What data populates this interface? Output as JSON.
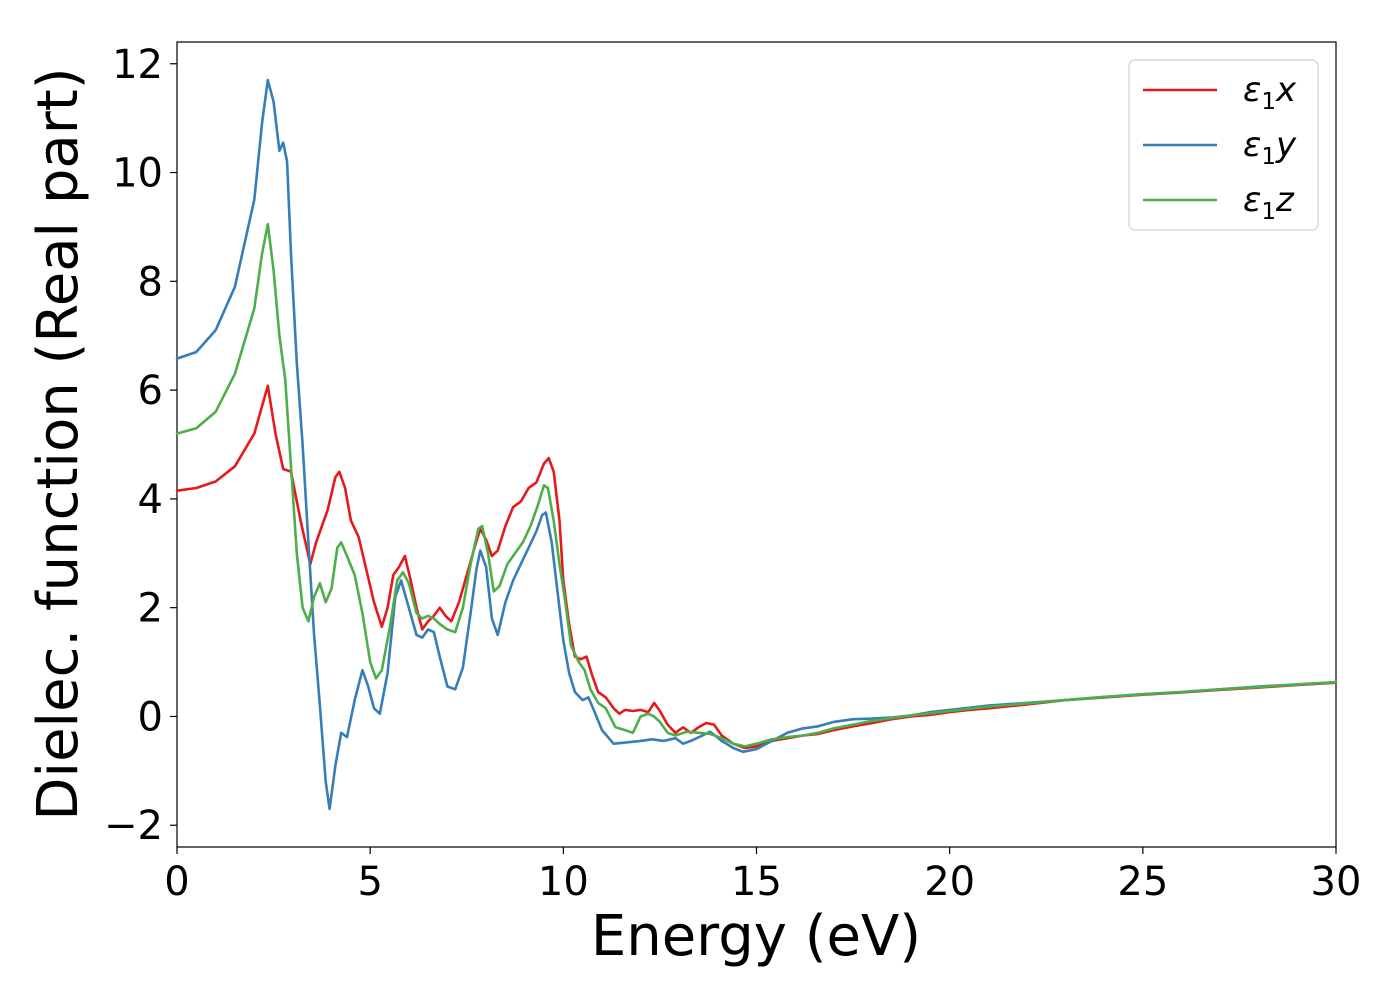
{
  "chart_data": {
    "type": "line",
    "title": "",
    "xlabel": "Energy (eV)",
    "ylabel": "Dielec. function (Real part)",
    "xlim": [
      0,
      30
    ],
    "ylim": [
      -2.4,
      12.4
    ],
    "xticks": [
      0,
      5,
      10,
      15,
      20,
      25,
      30
    ],
    "yticks": [
      -2,
      0,
      2,
      4,
      6,
      8,
      10,
      12
    ],
    "xtick_labels": [
      "0",
      "5",
      "10",
      "15",
      "20",
      "25",
      "30"
    ],
    "ytick_labels": [
      "−2",
      "0",
      "2",
      "4",
      "6",
      "8",
      "10",
      "12"
    ],
    "grid": false,
    "legend_position": "top-right",
    "series": [
      {
        "name": "ε₁x",
        "legend_base": "ε",
        "legend_sub": "1",
        "legend_suffix": "x",
        "color": "#e41a1c",
        "points": [
          [
            0,
            4.15
          ],
          [
            0.5,
            4.2
          ],
          [
            1,
            4.32
          ],
          [
            1.5,
            4.6
          ],
          [
            2,
            5.2
          ],
          [
            2.35,
            6.08
          ],
          [
            2.55,
            5.2
          ],
          [
            2.75,
            4.55
          ],
          [
            2.95,
            4.5
          ],
          [
            3.2,
            3.6
          ],
          [
            3.45,
            2.8
          ],
          [
            3.6,
            3.2
          ],
          [
            3.9,
            3.8
          ],
          [
            4.1,
            4.4
          ],
          [
            4.2,
            4.5
          ],
          [
            4.35,
            4.2
          ],
          [
            4.5,
            3.6
          ],
          [
            4.7,
            3.3
          ],
          [
            4.9,
            2.7
          ],
          [
            5.1,
            2.1
          ],
          [
            5.3,
            1.65
          ],
          [
            5.45,
            2.0
          ],
          [
            5.6,
            2.6
          ],
          [
            5.75,
            2.75
          ],
          [
            5.9,
            2.95
          ],
          [
            6.05,
            2.5
          ],
          [
            6.2,
            2.0
          ],
          [
            6.35,
            1.6
          ],
          [
            6.5,
            1.75
          ],
          [
            6.65,
            1.85
          ],
          [
            6.8,
            2.0
          ],
          [
            6.95,
            1.85
          ],
          [
            7.1,
            1.75
          ],
          [
            7.3,
            2.1
          ],
          [
            7.5,
            2.6
          ],
          [
            7.7,
            3.1
          ],
          [
            7.85,
            3.45
          ],
          [
            8.0,
            3.25
          ],
          [
            8.15,
            2.95
          ],
          [
            8.3,
            3.05
          ],
          [
            8.5,
            3.5
          ],
          [
            8.7,
            3.85
          ],
          [
            8.9,
            3.95
          ],
          [
            9.1,
            4.2
          ],
          [
            9.3,
            4.3
          ],
          [
            9.5,
            4.65
          ],
          [
            9.62,
            4.75
          ],
          [
            9.75,
            4.5
          ],
          [
            9.9,
            3.6
          ],
          [
            10.0,
            2.5
          ],
          [
            10.15,
            1.7
          ],
          [
            10.3,
            1.1
          ],
          [
            10.45,
            1.05
          ],
          [
            10.6,
            1.1
          ],
          [
            10.75,
            0.75
          ],
          [
            10.9,
            0.45
          ],
          [
            11.1,
            0.35
          ],
          [
            11.3,
            0.15
          ],
          [
            11.45,
            0.05
          ],
          [
            11.6,
            0.12
          ],
          [
            11.8,
            0.1
          ],
          [
            12.0,
            0.12
          ],
          [
            12.2,
            0.08
          ],
          [
            12.35,
            0.25
          ],
          [
            12.5,
            0.1
          ],
          [
            12.7,
            -0.15
          ],
          [
            12.9,
            -0.3
          ],
          [
            13.1,
            -0.2
          ],
          [
            13.3,
            -0.3
          ],
          [
            13.5,
            -0.2
          ],
          [
            13.7,
            -0.12
          ],
          [
            13.9,
            -0.15
          ],
          [
            14.1,
            -0.35
          ],
          [
            14.4,
            -0.5
          ],
          [
            14.7,
            -0.58
          ],
          [
            15.0,
            -0.55
          ],
          [
            15.4,
            -0.45
          ],
          [
            15.8,
            -0.4
          ],
          [
            16.2,
            -0.35
          ],
          [
            16.6,
            -0.32
          ],
          [
            17.0,
            -0.25
          ],
          [
            17.5,
            -0.18
          ],
          [
            18.0,
            -0.12
          ],
          [
            18.5,
            -0.05
          ],
          [
            19.0,
            0.0
          ],
          [
            19.5,
            0.03
          ],
          [
            20.0,
            0.08
          ],
          [
            20.5,
            0.12
          ],
          [
            21.0,
            0.15
          ],
          [
            22.0,
            0.22
          ],
          [
            23.0,
            0.3
          ],
          [
            24.0,
            0.35
          ],
          [
            25.0,
            0.4
          ],
          [
            26.0,
            0.44
          ],
          [
            27.0,
            0.49
          ],
          [
            28.0,
            0.53
          ],
          [
            29.0,
            0.58
          ],
          [
            30.0,
            0.62
          ]
        ]
      },
      {
        "name": "ε₁y",
        "legend_base": "ε",
        "legend_sub": "1",
        "legend_suffix": "y",
        "color": "#377eb8",
        "points": [
          [
            0,
            6.58
          ],
          [
            0.5,
            6.7
          ],
          [
            1,
            7.1
          ],
          [
            1.5,
            7.9
          ],
          [
            2,
            9.5
          ],
          [
            2.2,
            10.9
          ],
          [
            2.35,
            11.7
          ],
          [
            2.5,
            11.3
          ],
          [
            2.65,
            10.4
          ],
          [
            2.75,
            10.55
          ],
          [
            2.85,
            10.2
          ],
          [
            2.95,
            8.5
          ],
          [
            3.1,
            6.5
          ],
          [
            3.25,
            5.0
          ],
          [
            3.4,
            3.2
          ],
          [
            3.55,
            1.5
          ],
          [
            3.7,
            0.2
          ],
          [
            3.85,
            -1.2
          ],
          [
            3.95,
            -1.7
          ],
          [
            4.1,
            -0.9
          ],
          [
            4.25,
            -0.3
          ],
          [
            4.4,
            -0.38
          ],
          [
            4.6,
            0.3
          ],
          [
            4.8,
            0.85
          ],
          [
            4.95,
            0.55
          ],
          [
            5.1,
            0.15
          ],
          [
            5.25,
            0.05
          ],
          [
            5.45,
            0.8
          ],
          [
            5.65,
            2.2
          ],
          [
            5.8,
            2.5
          ],
          [
            6.0,
            2.0
          ],
          [
            6.2,
            1.5
          ],
          [
            6.35,
            1.45
          ],
          [
            6.5,
            1.6
          ],
          [
            6.65,
            1.55
          ],
          [
            6.8,
            1.1
          ],
          [
            7.0,
            0.55
          ],
          [
            7.2,
            0.5
          ],
          [
            7.4,
            0.9
          ],
          [
            7.6,
            1.9
          ],
          [
            7.75,
            2.7
          ],
          [
            7.85,
            3.05
          ],
          [
            8.0,
            2.75
          ],
          [
            8.15,
            1.8
          ],
          [
            8.3,
            1.5
          ],
          [
            8.5,
            2.1
          ],
          [
            8.7,
            2.5
          ],
          [
            8.9,
            2.8
          ],
          [
            9.1,
            3.1
          ],
          [
            9.3,
            3.4
          ],
          [
            9.45,
            3.7
          ],
          [
            9.55,
            3.75
          ],
          [
            9.7,
            3.2
          ],
          [
            9.85,
            2.3
          ],
          [
            10.0,
            1.4
          ],
          [
            10.15,
            0.8
          ],
          [
            10.3,
            0.45
          ],
          [
            10.5,
            0.3
          ],
          [
            10.65,
            0.35
          ],
          [
            10.8,
            0.1
          ],
          [
            11.0,
            -0.25
          ],
          [
            11.3,
            -0.5
          ],
          [
            11.6,
            -0.48
          ],
          [
            12.0,
            -0.45
          ],
          [
            12.3,
            -0.42
          ],
          [
            12.6,
            -0.45
          ],
          [
            12.9,
            -0.4
          ],
          [
            13.1,
            -0.5
          ],
          [
            13.3,
            -0.45
          ],
          [
            13.6,
            -0.35
          ],
          [
            13.8,
            -0.28
          ],
          [
            14.1,
            -0.45
          ],
          [
            14.4,
            -0.58
          ],
          [
            14.65,
            -0.65
          ],
          [
            15.0,
            -0.6
          ],
          [
            15.4,
            -0.45
          ],
          [
            15.8,
            -0.3
          ],
          [
            16.2,
            -0.22
          ],
          [
            16.6,
            -0.18
          ],
          [
            17.0,
            -0.1
          ],
          [
            17.5,
            -0.05
          ],
          [
            18.0,
            -0.04
          ],
          [
            18.5,
            -0.02
          ],
          [
            19.0,
            0.02
          ],
          [
            19.5,
            0.08
          ],
          [
            20.0,
            0.12
          ],
          [
            20.5,
            0.16
          ],
          [
            21.0,
            0.2
          ],
          [
            22.0,
            0.25
          ],
          [
            23.0,
            0.3
          ],
          [
            24.0,
            0.36
          ],
          [
            25.0,
            0.41
          ],
          [
            26.0,
            0.45
          ],
          [
            27.0,
            0.5
          ],
          [
            28.0,
            0.55
          ],
          [
            29.0,
            0.59
          ],
          [
            30.0,
            0.63
          ]
        ]
      },
      {
        "name": "ε₁z",
        "legend_base": "ε",
        "legend_sub": "1",
        "legend_suffix": "z",
        "color": "#4daf4a",
        "points": [
          [
            0,
            5.2
          ],
          [
            0.5,
            5.3
          ],
          [
            1,
            5.6
          ],
          [
            1.5,
            6.3
          ],
          [
            2,
            7.5
          ],
          [
            2.2,
            8.5
          ],
          [
            2.35,
            9.05
          ],
          [
            2.5,
            8.2
          ],
          [
            2.65,
            7.0
          ],
          [
            2.8,
            6.2
          ],
          [
            2.95,
            4.6
          ],
          [
            3.1,
            3.0
          ],
          [
            3.25,
            2.0
          ],
          [
            3.4,
            1.75
          ],
          [
            3.55,
            2.2
          ],
          [
            3.7,
            2.45
          ],
          [
            3.85,
            2.1
          ],
          [
            4.0,
            2.35
          ],
          [
            4.15,
            3.1
          ],
          [
            4.25,
            3.2
          ],
          [
            4.4,
            2.95
          ],
          [
            4.6,
            2.6
          ],
          [
            4.8,
            1.9
          ],
          [
            5.0,
            1.0
          ],
          [
            5.15,
            0.7
          ],
          [
            5.3,
            0.85
          ],
          [
            5.5,
            1.6
          ],
          [
            5.7,
            2.5
          ],
          [
            5.85,
            2.65
          ],
          [
            6.0,
            2.45
          ],
          [
            6.2,
            1.9
          ],
          [
            6.35,
            1.8
          ],
          [
            6.5,
            1.85
          ],
          [
            6.65,
            1.8
          ],
          [
            6.8,
            1.7
          ],
          [
            7.0,
            1.6
          ],
          [
            7.2,
            1.55
          ],
          [
            7.4,
            2.0
          ],
          [
            7.6,
            2.8
          ],
          [
            7.8,
            3.45
          ],
          [
            7.9,
            3.5
          ],
          [
            8.05,
            3.0
          ],
          [
            8.2,
            2.3
          ],
          [
            8.35,
            2.4
          ],
          [
            8.55,
            2.8
          ],
          [
            8.75,
            3.0
          ],
          [
            8.95,
            3.2
          ],
          [
            9.15,
            3.5
          ],
          [
            9.35,
            3.9
          ],
          [
            9.5,
            4.25
          ],
          [
            9.6,
            4.2
          ],
          [
            9.75,
            3.6
          ],
          [
            9.9,
            2.8
          ],
          [
            10.05,
            2.1
          ],
          [
            10.2,
            1.3
          ],
          [
            10.4,
            1.0
          ],
          [
            10.55,
            0.85
          ],
          [
            10.7,
            0.5
          ],
          [
            10.9,
            0.25
          ],
          [
            11.1,
            0.15
          ],
          [
            11.35,
            -0.2
          ],
          [
            11.6,
            -0.25
          ],
          [
            11.8,
            -0.3
          ],
          [
            12.0,
            0.0
          ],
          [
            12.2,
            0.05
          ],
          [
            12.35,
            0.0
          ],
          [
            12.5,
            -0.1
          ],
          [
            12.7,
            -0.3
          ],
          [
            12.9,
            -0.35
          ],
          [
            13.2,
            -0.28
          ],
          [
            13.5,
            -0.3
          ],
          [
            13.8,
            -0.32
          ],
          [
            14.1,
            -0.4
          ],
          [
            14.4,
            -0.5
          ],
          [
            14.7,
            -0.55
          ],
          [
            15.0,
            -0.5
          ],
          [
            15.4,
            -0.42
          ],
          [
            15.8,
            -0.38
          ],
          [
            16.2,
            -0.35
          ],
          [
            16.6,
            -0.3
          ],
          [
            17.0,
            -0.22
          ],
          [
            17.5,
            -0.15
          ],
          [
            18.0,
            -0.08
          ],
          [
            18.5,
            -0.03
          ],
          [
            19.0,
            0.02
          ],
          [
            19.5,
            0.06
          ],
          [
            20.0,
            0.1
          ],
          [
            20.5,
            0.14
          ],
          [
            21.0,
            0.18
          ],
          [
            22.0,
            0.24
          ],
          [
            23.0,
            0.3
          ],
          [
            24.0,
            0.36
          ],
          [
            25.0,
            0.41
          ],
          [
            26.0,
            0.45
          ],
          [
            27.0,
            0.5
          ],
          [
            28.0,
            0.54
          ],
          [
            29.0,
            0.59
          ],
          [
            30.0,
            0.63
          ]
        ]
      }
    ]
  }
}
